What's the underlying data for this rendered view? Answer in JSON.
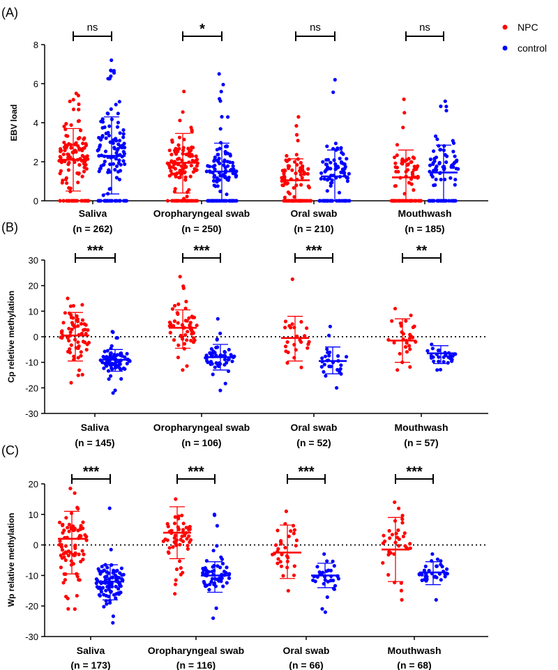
{
  "legend": [
    {
      "name": "NPC",
      "color": "#ff0000"
    },
    {
      "name": "control",
      "color": "#0000ff"
    }
  ],
  "chart_data": [
    {
      "panel": "(A)",
      "type": "scatter",
      "ylabel": "EBV load",
      "ylim": [
        0,
        8
      ],
      "yticks": [
        0,
        2,
        4,
        6,
        8
      ],
      "zero_line": false,
      "groups": [
        {
          "name": "Saliva",
          "n_label": "(n = 262)",
          "significance": "ns",
          "npc": {
            "mean": 2.1,
            "sd_low": 0.5,
            "sd_high": 3.7,
            "min": 0,
            "max": 5.5,
            "count": 130,
            "zero_fraction": 0.25
          },
          "control": {
            "mean": 2.3,
            "sd_low": 0.35,
            "sd_high": 4.3,
            "min": 0,
            "max": 7.2,
            "count": 132,
            "zero_fraction": 0.25
          }
        },
        {
          "name": "Oropharyngeal swab",
          "n_label": "(n = 250)",
          "significance": "*",
          "npc": {
            "mean": 1.95,
            "sd_low": 0.4,
            "sd_high": 3.45,
            "min": 0,
            "max": 5.6,
            "count": 125,
            "zero_fraction": 0.25
          },
          "control": {
            "mean": 1.5,
            "sd_low": 0.0,
            "sd_high": 2.95,
            "min": 0,
            "max": 6.5,
            "count": 125,
            "zero_fraction": 0.35
          }
        },
        {
          "name": "Oral swab",
          "n_label": "(n = 210)",
          "significance": "ns",
          "npc": {
            "mean": 1.05,
            "sd_low": 0.0,
            "sd_high": 2.15,
            "min": 0,
            "max": 4.3,
            "count": 105,
            "zero_fraction": 0.45
          },
          "control": {
            "mean": 1.25,
            "sd_low": 0.0,
            "sd_high": 2.6,
            "min": 0,
            "max": 6.2,
            "count": 105,
            "zero_fraction": 0.4
          }
        },
        {
          "name": "Mouthwash",
          "n_label": "(n = 185)",
          "significance": "ns",
          "npc": {
            "mean": 1.2,
            "sd_low": 0.0,
            "sd_high": 2.6,
            "min": 0,
            "max": 5.2,
            "count": 92,
            "zero_fraction": 0.5
          },
          "control": {
            "mean": 1.45,
            "sd_low": 0.0,
            "sd_high": 2.85,
            "min": 0,
            "max": 5.1,
            "count": 93,
            "zero_fraction": 0.35
          }
        }
      ]
    },
    {
      "panel": "(B)",
      "type": "scatter",
      "ylabel": "Cp reletive methylation",
      "ylim": [
        -30,
        30
      ],
      "yticks": [
        -30,
        -20,
        -10,
        0,
        10,
        20,
        30
      ],
      "zero_line": true,
      "groups": [
        {
          "name": "Saliva",
          "n_label": "(n = 145)",
          "significance": "***",
          "npc": {
            "mean": 0.5,
            "sd_low": -9.5,
            "sd_high": 9.5,
            "min": -18,
            "max": 15,
            "count": 65
          },
          "control": {
            "mean": -9.0,
            "sd_low": -13.5,
            "sd_high": -5.0,
            "min": -22,
            "max": 2,
            "count": 80
          }
        },
        {
          "name": "Oropharyngeal swab",
          "n_label": "(n = 106)",
          "significance": "***",
          "npc": {
            "mean": 3.5,
            "sd_low": -4.5,
            "sd_high": 10.5,
            "min": -13,
            "max": 23.5,
            "count": 55
          },
          "control": {
            "mean": -8.0,
            "sd_low": -13.0,
            "sd_high": -3.0,
            "min": -21,
            "max": 7,
            "count": 51
          }
        },
        {
          "name": "Oral swab",
          "n_label": "(n = 52)",
          "significance": "***",
          "npc": {
            "mean": -0.5,
            "sd_low": -9.5,
            "sd_high": 8.0,
            "min": -12,
            "max": 22.5,
            "count": 25
          },
          "control": {
            "mean": -9.5,
            "sd_low": -14.5,
            "sd_high": -4.0,
            "min": -20,
            "max": 4,
            "count": 27
          }
        },
        {
          "name": "Mouthwash",
          "n_label": "(n = 57)",
          "significance": "**",
          "npc": {
            "mean": -1.5,
            "sd_low": -10.0,
            "sd_high": 7.0,
            "min": -13,
            "max": 11,
            "count": 28
          },
          "control": {
            "mean": -6.5,
            "sd_low": -10.5,
            "sd_high": -3.5,
            "min": -13,
            "max": -3,
            "count": 29
          }
        }
      ]
    },
    {
      "panel": "(C)",
      "type": "scatter",
      "ylabel": "Wp relative methylation",
      "ylim": [
        -30,
        20
      ],
      "yticks": [
        -30,
        -20,
        -10,
        0,
        10,
        20
      ],
      "zero_line": true,
      "groups": [
        {
          "name": "Saliva",
          "n_label": "(n = 173)",
          "significance": "***",
          "npc": {
            "mean": 2.0,
            "sd_low": -9.5,
            "sd_high": 11.0,
            "min": -21,
            "max": 18.5,
            "count": 80
          },
          "control": {
            "mean": -12.0,
            "sd_low": -18.0,
            "sd_high": -6.5,
            "min": -25.5,
            "max": 12,
            "count": 93
          }
        },
        {
          "name": "Oropharyngeal swab",
          "n_label": "(n = 116)",
          "significance": "***",
          "npc": {
            "mean": 4.0,
            "sd_low": -4.5,
            "sd_high": 12.5,
            "min": -16,
            "max": 15,
            "count": 56
          },
          "control": {
            "mean": -10.0,
            "sd_low": -15.5,
            "sd_high": -5.5,
            "min": -24,
            "max": 10,
            "count": 60
          }
        },
        {
          "name": "Oral swab",
          "n_label": "(n = 66)",
          "significance": "***",
          "npc": {
            "mean": -2.5,
            "sd_low": -11.0,
            "sd_high": 6.5,
            "min": -15,
            "max": 11,
            "count": 32
          },
          "control": {
            "mean": -10.0,
            "sd_low": -14.0,
            "sd_high": -6.0,
            "min": -22,
            "max": -3,
            "count": 34
          }
        },
        {
          "name": "Mouthwash",
          "n_label": "(n = 68)",
          "significance": "***",
          "npc": {
            "mean": -1.5,
            "sd_low": -12.0,
            "sd_high": 9.0,
            "min": -18,
            "max": 14,
            "count": 34
          },
          "control": {
            "mean": -9.0,
            "sd_low": -13.0,
            "sd_high": -5.5,
            "min": -18,
            "max": -3,
            "count": 34
          }
        }
      ]
    }
  ]
}
